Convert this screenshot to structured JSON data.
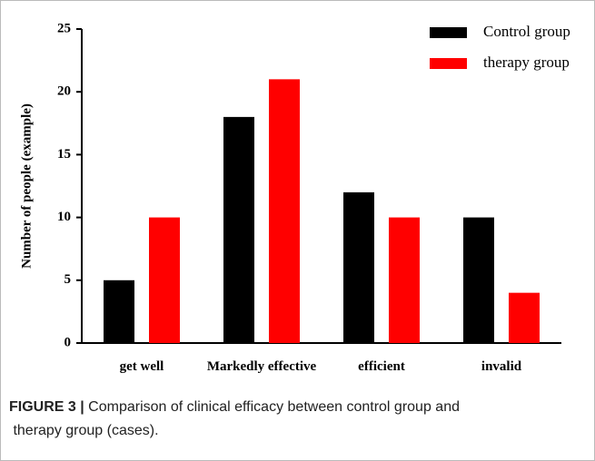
{
  "chart_data": {
    "type": "bar",
    "categories": [
      "get well",
      "Markedly effective",
      "efficient",
      "invalid"
    ],
    "series": [
      {
        "name": "Control group",
        "color": "#000000",
        "values": [
          5,
          18,
          12,
          10
        ]
      },
      {
        "name": "therapy group",
        "color": "#ff0000",
        "values": [
          10,
          21,
          10,
          4
        ]
      }
    ],
    "ylabel": "Number of people (example)",
    "ylim": [
      0,
      25
    ],
    "yticks": [
      0,
      5,
      10,
      15,
      20,
      25
    ],
    "legend": "top-right"
  },
  "caption": {
    "label": "FIGURE 3 |",
    "text": "Comparison of clinical efficacy between control group and therapy group (cases)."
  }
}
